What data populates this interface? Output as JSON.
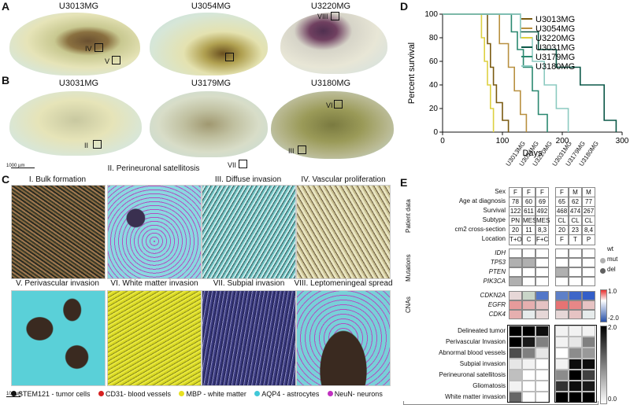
{
  "panels": {
    "A": "A",
    "B": "B",
    "C": "C",
    "D": "D",
    "E": "E"
  },
  "brains_row_a": [
    "U3013MG",
    "U3054MG",
    "U3220MG"
  ],
  "brains_row_b": [
    "U3031MG",
    "U3179MG",
    "U3180MG"
  ],
  "roman": {
    "iv": "IV",
    "v": "V",
    "vi": "VI",
    "ii": "II",
    "vii": "VII",
    "iii": "III",
    "viii": "VIII"
  },
  "scale_bar_1000": "1000 µm",
  "scale_bar_100": "100 µm",
  "tile_titles": [
    "I. Bulk formation",
    "II. Perineuronal satellitosis",
    "III. Diffuse invasion",
    "IV. Vascular proliferation",
    "V. Perivascular invasion",
    "VI. White matter invasion",
    "VII. Subpial invasion",
    "VIII. Leptomeningeal spread"
  ],
  "stain_legend": [
    {
      "label": "STEM121 - tumor cells",
      "color": "#111111"
    },
    {
      "label": "CD31- blood vessels",
      "color": "#d62020"
    },
    {
      "label": "MBP - white matter",
      "color": "#e8e020"
    },
    {
      "label": "AQP4 - astrocytes",
      "color": "#40c8d8"
    },
    {
      "label": "NeuN- neurons",
      "color": "#c030c0"
    }
  ],
  "chart_data": {
    "type": "line",
    "ylabel": "Percent survival",
    "xlabel": "Days",
    "xlim": [
      0,
      300
    ],
    "ylim": [
      0,
      100
    ],
    "xticks": [
      0,
      100,
      200,
      300
    ],
    "yticks": [
      0,
      20,
      40,
      60,
      80,
      100
    ],
    "legend_position": "top-right",
    "series": [
      {
        "name": "U3013MG",
        "color": "#7a5a10",
        "x": [
          0,
          70,
          75,
          80,
          85,
          90,
          100,
          110
        ],
        "y": [
          100,
          100,
          75,
          55,
          40,
          25,
          10,
          0
        ]
      },
      {
        "name": "U3054MG",
        "color": "#b89040",
        "x": [
          0,
          85,
          95,
          110,
          120,
          130,
          140
        ],
        "y": [
          100,
          100,
          75,
          55,
          35,
          15,
          0
        ]
      },
      {
        "name": "U3220MG",
        "color": "#ddd040",
        "x": [
          0,
          60,
          65,
          70,
          75,
          80,
          85
        ],
        "y": [
          100,
          100,
          80,
          60,
          40,
          20,
          0
        ]
      },
      {
        "name": "U3031MG",
        "color": "#0c5848",
        "x": [
          0,
          110,
          130,
          160,
          190,
          230,
          270,
          290
        ],
        "y": [
          100,
          100,
          85,
          70,
          55,
          40,
          10,
          0
        ]
      },
      {
        "name": "U3179MG",
        "color": "#2a8870",
        "x": [
          0,
          100,
          115,
          125,
          135,
          150,
          160,
          175
        ],
        "y": [
          100,
          100,
          85,
          70,
          55,
          35,
          15,
          0
        ]
      },
      {
        "name": "U3180MG",
        "color": "#8ccac0",
        "x": [
          0,
          110,
          130,
          150,
          170,
          190,
          210
        ],
        "y": [
          100,
          100,
          80,
          60,
          40,
          20,
          0
        ]
      }
    ]
  },
  "table": {
    "samples": [
      "U3013MG",
      "U3054MG",
      "U3220MG",
      "U3031MG",
      "U3179MG",
      "U3180MG"
    ],
    "groups": [
      "Patient data",
      "Mutations",
      "CNAs"
    ],
    "patient_rows": [
      {
        "label": "Sex",
        "values": [
          "F",
          "F",
          "F",
          "F",
          "M",
          "M"
        ]
      },
      {
        "label": "Age at diagnosis",
        "values": [
          "78",
          "60",
          "69",
          "65",
          "62",
          "77"
        ]
      },
      {
        "label": "Survival",
        "values": [
          "122",
          "611",
          "492",
          "468",
          "474",
          "267"
        ]
      },
      {
        "label": "Subtype",
        "values": [
          "PN",
          "MES",
          "MES",
          "CL",
          "CL",
          "CL"
        ]
      },
      {
        "label": "cm2 cross-section",
        "values": [
          "20",
          "11",
          "8,3",
          "20",
          "23",
          "8,4"
        ]
      },
      {
        "label": "Location",
        "values": [
          "T+O",
          "C",
          "F+C",
          "F",
          "T",
          "P"
        ]
      }
    ],
    "mutation_rows": [
      {
        "label": "IDH",
        "values": [
          0,
          0,
          0,
          0,
          0,
          0
        ]
      },
      {
        "label": "TP53",
        "values": [
          1,
          1,
          0,
          0,
          0,
          0
        ]
      },
      {
        "label": "PTEN",
        "values": [
          0,
          0,
          0,
          1,
          0,
          0
        ]
      },
      {
        "label": "PIK3CA",
        "values": [
          1,
          0,
          0,
          0,
          0,
          0
        ]
      }
    ],
    "mutation_legend": [
      "wt",
      "mut",
      "del"
    ],
    "cna_rows": [
      {
        "label": "CDKN2A",
        "values": [
          0.2,
          -0.5,
          -1.6,
          -1.5,
          -1.8,
          -1.9
        ]
      },
      {
        "label": "EGFR",
        "values": [
          0.5,
          0.4,
          0.3,
          0.7,
          0.6,
          0.3
        ]
      },
      {
        "label": "CDK4",
        "values": [
          0.4,
          0.1,
          0.2,
          0.2,
          0.3,
          0.1
        ]
      }
    ],
    "cna_scale": [
      "1.0",
      "-2.0"
    ],
    "invasion_rows": [
      {
        "label": "Delineated tumor",
        "values": [
          2.0,
          2.0,
          1.9,
          0.1,
          0.1,
          0.1
        ]
      },
      {
        "label": "Perivascular Invasion",
        "values": [
          2.0,
          1.8,
          1.0,
          0.1,
          0.2,
          1.0
        ]
      },
      {
        "label": "Abnormal blood vessels",
        "values": [
          1.4,
          1.0,
          0.2,
          0.0,
          0.9,
          0.8
        ]
      },
      {
        "label": "Subpial invasion",
        "values": [
          0.2,
          0.1,
          0.0,
          0.1,
          1.9,
          1.9
        ]
      },
      {
        "label": "Perineuronal satellitosis",
        "values": [
          0.5,
          0.0,
          0.0,
          0.9,
          2.0,
          1.5
        ]
      },
      {
        "label": "Gliomatosis",
        "values": [
          0.1,
          0.0,
          0.0,
          1.6,
          1.9,
          1.8
        ]
      },
      {
        "label": "White matter invasion",
        "values": [
          1.2,
          0.0,
          0.0,
          2.0,
          2.0,
          2.0
        ]
      }
    ],
    "invasion_scale": [
      "2.0",
      "0.0"
    ]
  }
}
